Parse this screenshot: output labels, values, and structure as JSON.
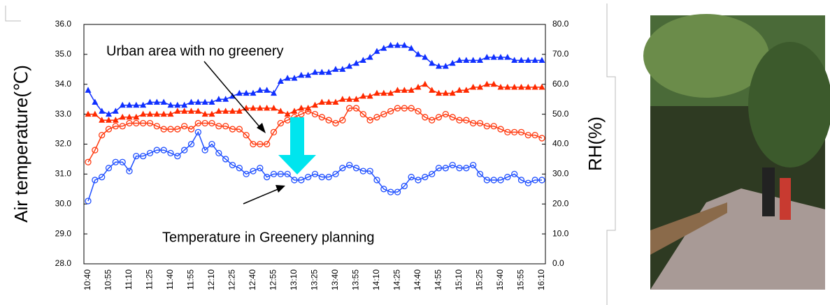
{
  "chart_data": {
    "type": "line",
    "y_label": "Air temperature(℃)",
    "y2_label": "RH(%)",
    "annotations": [
      "Urban area with no greenery",
      "Temperature in Greenery planning"
    ],
    "categories": [
      "10:40",
      null,
      null,
      "10:55",
      null,
      null,
      "11:10",
      null,
      null,
      "11:25",
      null,
      null,
      "11:40",
      null,
      null,
      "11:55",
      null,
      null,
      "12:10",
      null,
      null,
      "12:25",
      null,
      null,
      "12:40",
      null,
      null,
      "12:55",
      null,
      null,
      "13:10",
      null,
      null,
      "13:25",
      null,
      null,
      "13:40",
      null,
      null,
      "13:55",
      null,
      null,
      "14:10",
      null,
      null,
      "14:25",
      null,
      null,
      "14:40",
      null,
      null,
      "14:55",
      null,
      null,
      "15:10",
      null,
      null,
      "15:25",
      null,
      null,
      "15:40",
      null,
      null,
      "15:55",
      null,
      null,
      "16:10"
    ],
    "ylim": [
      28,
      36
    ],
    "yticks": [
      {
        "value": 28,
        "label": "28.0"
      },
      {
        "value": 29,
        "label": "29.0"
      },
      {
        "value": 30,
        "label": "30.0"
      },
      {
        "value": 31,
        "label": "31.0"
      },
      {
        "value": 32,
        "label": "32.0"
      },
      {
        "value": 33,
        "label": "33.0"
      },
      {
        "value": 34,
        "label": "34.0"
      },
      {
        "value": 35,
        "label": "35.0"
      },
      {
        "value": 36,
        "label": "36.0"
      }
    ],
    "y2lim": [
      0,
      80
    ],
    "y2ticks": [
      {
        "value": 0,
        "label": "0.0"
      },
      {
        "value": 10,
        "label": "10.0"
      },
      {
        "value": 20,
        "label": "20.0"
      },
      {
        "value": 30,
        "label": "30.0"
      },
      {
        "value": 40,
        "label": "40.0"
      },
      {
        "value": 50,
        "label": "50.0"
      },
      {
        "value": 60,
        "label": "60.0"
      },
      {
        "value": 70,
        "label": "70.0"
      },
      {
        "value": 80,
        "label": "80.0"
      }
    ],
    "series": [
      {
        "color": "#1030ff",
        "marker": "triangle",
        "axis": "y2",
        "values": [
          58,
          54,
          51,
          50,
          51,
          53,
          53,
          53,
          53,
          54,
          54,
          54,
          53,
          53,
          53,
          54,
          54,
          54,
          54,
          55,
          55,
          56,
          57,
          57,
          57,
          58,
          58,
          57,
          61,
          62,
          62,
          63,
          63,
          64,
          64,
          64,
          65,
          65,
          66,
          67,
          68,
          69,
          71,
          72,
          73,
          73,
          73,
          72,
          70,
          69,
          67,
          66,
          66,
          67,
          68,
          68,
          68,
          68,
          69,
          69,
          69,
          69,
          68,
          68,
          68,
          68,
          68
        ]
      },
      {
        "color": "#ff2a00",
        "marker": "triangle",
        "axis": "y2",
        "values": [
          50,
          50,
          48,
          48,
          48,
          49,
          49,
          49,
          50,
          50,
          50,
          50,
          50,
          51,
          51,
          51,
          51,
          50,
          50,
          51,
          51,
          51,
          51,
          52,
          52,
          52,
          52,
          52,
          51,
          50,
          51,
          52,
          52,
          53,
          54,
          54,
          54,
          55,
          55,
          55,
          56,
          56,
          57,
          57,
          57,
          58,
          58,
          58,
          59,
          60,
          58,
          57,
          57,
          57,
          58,
          58,
          59,
          59,
          60,
          60,
          59,
          59,
          59,
          59,
          59,
          59,
          59
        ]
      },
      {
        "color": "#ff3a10",
        "marker": "circle",
        "values": [
          31.4,
          31.8,
          32.3,
          32.5,
          32.6,
          32.6,
          32.7,
          32.7,
          32.7,
          32.7,
          32.6,
          32.5,
          32.5,
          32.5,
          32.6,
          32.5,
          32.7,
          32.7,
          32.7,
          32.6,
          32.6,
          32.5,
          32.5,
          32.3,
          32.0,
          32.0,
          32.0,
          32.4,
          32.7,
          32.8,
          32.9,
          33.0,
          33.1,
          33.0,
          32.9,
          32.8,
          32.7,
          32.8,
          33.2,
          33.2,
          33.0,
          32.8,
          32.9,
          33.0,
          33.1,
          33.2,
          33.2,
          33.2,
          33.1,
          32.9,
          32.8,
          32.9,
          33.0,
          32.9,
          32.8,
          32.8,
          32.7,
          32.7,
          32.6,
          32.6,
          32.5,
          32.4,
          32.4,
          32.4,
          32.3,
          32.3,
          32.2
        ]
      },
      {
        "color": "#2050ff",
        "marker": "circle",
        "values": [
          30.1,
          30.8,
          30.9,
          31.2,
          31.4,
          31.4,
          31.1,
          31.6,
          31.6,
          31.7,
          31.8,
          31.8,
          31.7,
          31.6,
          31.8,
          32.0,
          32.4,
          31.8,
          32.0,
          31.7,
          31.5,
          31.3,
          31.2,
          31.0,
          31.1,
          31.2,
          30.9,
          31.0,
          31.0,
          31.0,
          30.8,
          30.8,
          30.9,
          31.0,
          30.9,
          30.9,
          31.0,
          31.2,
          31.3,
          31.2,
          31.1,
          31.1,
          30.8,
          30.5,
          30.4,
          30.4,
          30.6,
          30.9,
          30.8,
          30.9,
          31.0,
          31.2,
          31.2,
          31.3,
          31.2,
          31.2,
          31.3,
          31.0,
          30.8,
          30.8,
          30.8,
          30.9,
          31.0,
          30.8,
          30.7,
          30.8,
          30.8
        ]
      }
    ]
  }
}
